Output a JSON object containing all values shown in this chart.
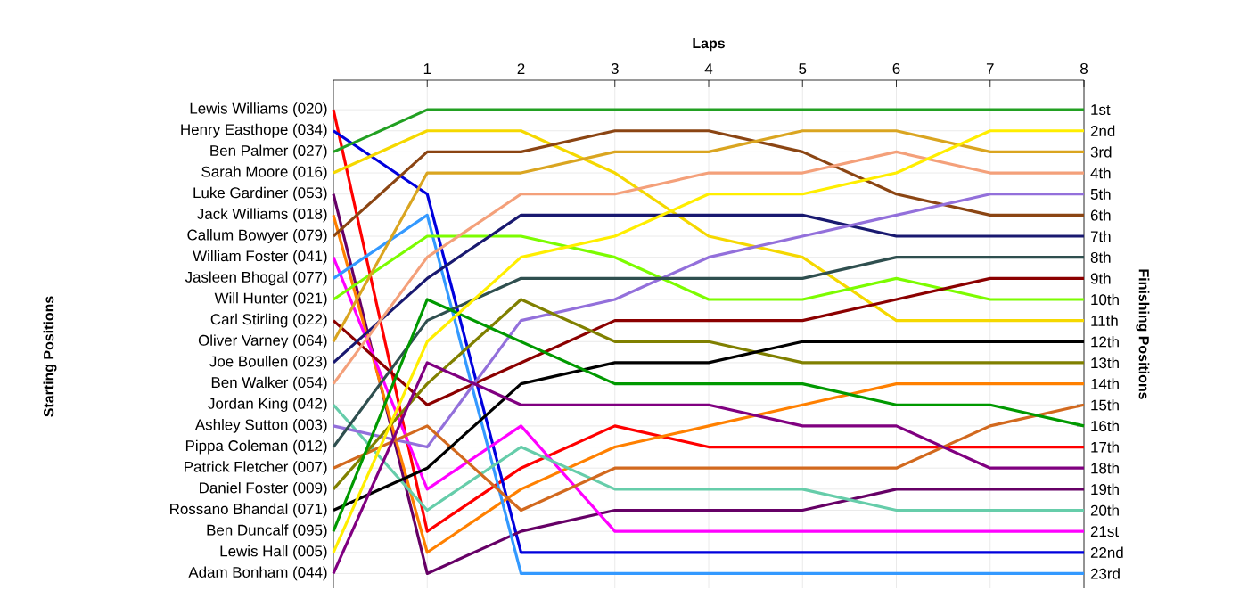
{
  "chart_data": {
    "type": "line",
    "xlabel": "Laps",
    "ylabel": "Finishing Positions",
    "annotations": [
      "Starting Positions"
    ],
    "x": [
      0,
      1,
      2,
      3,
      4,
      5,
      6,
      7,
      8
    ],
    "xlim": [
      0,
      8
    ],
    "xticks": [
      1,
      2,
      3,
      4,
      5,
      6,
      7,
      8
    ],
    "ylim": [
      23.7,
      -0.4
    ],
    "yticks": [
      {
        "value": 1,
        "label": "1st"
      },
      {
        "value": 2,
        "label": "2nd"
      },
      {
        "value": 3,
        "label": "3rd"
      },
      {
        "value": 4,
        "label": "4th"
      },
      {
        "value": 5,
        "label": "5th"
      },
      {
        "value": 6,
        "label": "6th"
      },
      {
        "value": 7,
        "label": "7th"
      },
      {
        "value": 8,
        "label": "8th"
      },
      {
        "value": 9,
        "label": "9th"
      },
      {
        "value": 10,
        "label": "10th"
      },
      {
        "value": 11,
        "label": "11th"
      },
      {
        "value": 12,
        "label": "12th"
      },
      {
        "value": 13,
        "label": "13th"
      },
      {
        "value": 14,
        "label": "14th"
      },
      {
        "value": 15,
        "label": "15th"
      },
      {
        "value": 16,
        "label": "16th"
      },
      {
        "value": 17,
        "label": "17th"
      },
      {
        "value": 18,
        "label": "18th"
      },
      {
        "value": 19,
        "label": "19th"
      },
      {
        "value": 20,
        "label": "20th"
      },
      {
        "value": 21,
        "label": "21st"
      },
      {
        "value": 22,
        "label": "22nd"
      },
      {
        "value": 23,
        "label": "23rd"
      }
    ],
    "grid": true,
    "marker": "none",
    "line_style": "solid",
    "legend": "left",
    "series": [
      {
        "name": "Lewis Williams (020)",
        "color": "#ff0000",
        "values": [
          1,
          21,
          18,
          16,
          17,
          17,
          17,
          17,
          17
        ]
      },
      {
        "name": "Henry Easthope (034)",
        "color": "#0000dd",
        "values": [
          2,
          5,
          22,
          22,
          22,
          22,
          22,
          22,
          22
        ]
      },
      {
        "name": "Ben Palmer (027)",
        "color": "#22a022",
        "values": [
          3,
          1,
          1,
          1,
          1,
          1,
          1,
          1,
          1
        ]
      },
      {
        "name": "Sarah Moore (016)",
        "color": "#f5d800",
        "values": [
          4,
          2,
          2,
          4,
          7,
          8,
          11,
          11,
          11
        ]
      },
      {
        "name": "Luke Gardiner (053)",
        "color": "#660066",
        "values": [
          5,
          23,
          21,
          20,
          20,
          20,
          19,
          19,
          19
        ]
      },
      {
        "name": "Jack Williams (018)",
        "color": "#ff8000",
        "values": [
          6,
          22,
          19,
          17,
          16,
          15,
          14,
          14,
          14
        ]
      },
      {
        "name": "Callum Bowyer (079)",
        "color": "#8b4513",
        "values": [
          7,
          3,
          3,
          2,
          2,
          3,
          5,
          6,
          6
        ]
      },
      {
        "name": "William Foster (041)",
        "color": "#ff00ff",
        "values": [
          8,
          19,
          16,
          21,
          21,
          21,
          21,
          21,
          21
        ]
      },
      {
        "name": "Jasleen Bhogal (077)",
        "color": "#3399ff",
        "values": [
          9,
          6,
          23,
          23,
          23,
          23,
          23,
          23,
          23
        ]
      },
      {
        "name": "Will Hunter (021)",
        "color": "#7cfc00",
        "values": [
          10,
          7,
          7,
          8,
          10,
          10,
          9,
          10,
          10
        ]
      },
      {
        "name": "Carl Stirling (022)",
        "color": "#8b0000",
        "values": [
          11,
          15,
          13,
          11,
          11,
          11,
          10,
          9,
          9
        ]
      },
      {
        "name": "Oliver Varney (064)",
        "color": "#daa520",
        "values": [
          12,
          4,
          4,
          3,
          3,
          2,
          2,
          3,
          3
        ]
      },
      {
        "name": "Joe Boullen (023)",
        "color": "#191970",
        "values": [
          13,
          9,
          6,
          6,
          6,
          6,
          7,
          7,
          7
        ]
      },
      {
        "name": "Ben Walker (054)",
        "color": "#f4a07a",
        "values": [
          14,
          8,
          5,
          5,
          4,
          4,
          3,
          4,
          4
        ]
      },
      {
        "name": "Jordan King (042)",
        "color": "#66cdaa",
        "values": [
          15,
          20,
          17,
          19,
          19,
          19,
          20,
          20,
          20
        ]
      },
      {
        "name": "Ashley Sutton (003)",
        "color": "#9370db",
        "values": [
          16,
          17,
          11,
          10,
          8,
          7,
          6,
          5,
          5
        ]
      },
      {
        "name": "Pippa Coleman (012)",
        "color": "#2f4f4f",
        "values": [
          17,
          11,
          9,
          9,
          9,
          9,
          8,
          8,
          8
        ]
      },
      {
        "name": "Patrick Fletcher (007)",
        "color": "#d2691e",
        "values": [
          18,
          16,
          20,
          18,
          18,
          18,
          18,
          16,
          15
        ]
      },
      {
        "name": "Daniel Foster (009)",
        "color": "#808000",
        "values": [
          19,
          14,
          10,
          12,
          12,
          13,
          13,
          13,
          13
        ]
      },
      {
        "name": "Rossano Bhandal (071)",
        "color": "#000000",
        "values": [
          20,
          18,
          14,
          13,
          13,
          12,
          12,
          12,
          12
        ]
      },
      {
        "name": "Ben Duncalf (095)",
        "color": "#009900",
        "values": [
          21,
          10,
          12,
          14,
          14,
          14,
          15,
          15,
          16
        ]
      },
      {
        "name": "Lewis Hall (005)",
        "color": "#ffee00",
        "values": [
          22,
          12,
          8,
          7,
          5,
          5,
          4,
          2,
          2
        ]
      },
      {
        "name": "Adam Bonham (044)",
        "color": "#800080",
        "values": [
          23,
          13,
          15,
          15,
          15,
          16,
          16,
          18,
          18
        ]
      }
    ]
  }
}
